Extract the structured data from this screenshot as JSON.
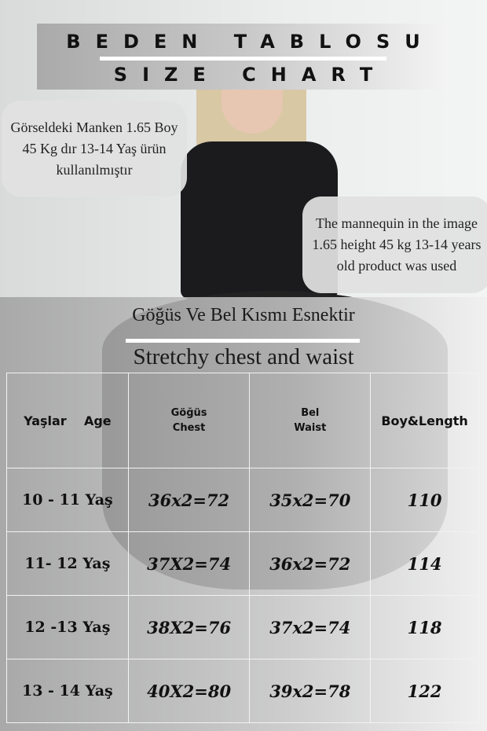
{
  "banner": {
    "title_tr": "BEDEN TABLOSU",
    "title_en": "SIZE CHART"
  },
  "notes": {
    "tr": "Görseldeki Manken 1.65 Boy 45 Kg dır 13-14 Yaş ürün kullanılmıştır",
    "en": "The mannequin in the image 1.65 height 45 kg 13-14 years old product was used"
  },
  "headings": {
    "tr": "Göğüs Ve Bel Kısmı Esnektir",
    "en": "Stretchy chest and waist"
  },
  "table": {
    "headers": {
      "age": "Yaşlar    Age",
      "chest_tr": "Göğüs",
      "chest_en": "Chest",
      "waist_tr": "Bel",
      "waist_en": "Waist",
      "length": "Boy&Length"
    },
    "rows": [
      {
        "age": "10 - 11 Yaş",
        "chest": "36x2=72",
        "waist": "35x2=70",
        "length": "110"
      },
      {
        "age": "11- 12 Yaş",
        "chest": "37X2=74",
        "waist": "36x2=72",
        "length": "114"
      },
      {
        "age": "12 -13 Yaş",
        "chest": "38X2=76",
        "waist": "37x2=74",
        "length": "118"
      },
      {
        "age": "13 - 14 Yaş",
        "chest": "40X2=80",
        "waist": "39x2=78",
        "length": "122"
      }
    ]
  }
}
